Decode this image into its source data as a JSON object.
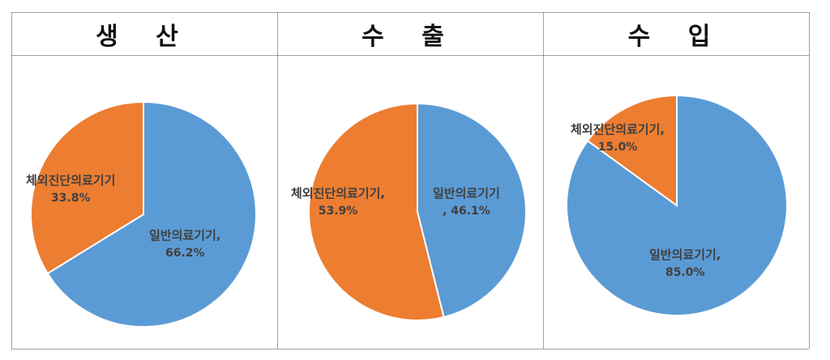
{
  "colors": {
    "blue": "#5b9bd5",
    "orange": "#ed7d31",
    "border": "#444444"
  },
  "panels": [
    {
      "title": "생 산"
    },
    {
      "title": "수 출"
    },
    {
      "title": "수 입"
    }
  ],
  "chart_data": [
    {
      "type": "pie",
      "title": "생 산",
      "slices": [
        {
          "label": "일반의료기기,",
          "value": 66.2,
          "value_label": "66.2%",
          "color": "#5b9bd5"
        },
        {
          "label": "체외진단의료기기",
          "value": 33.8,
          "value_label": "33.8%",
          "color": "#ed7d31"
        }
      ]
    },
    {
      "type": "pie",
      "title": "수 출",
      "slices": [
        {
          "label": "일반의료기기",
          "value": 46.1,
          "value_label": ", 46.1%",
          "color": "#5b9bd5"
        },
        {
          "label": "체외진단의료기기,",
          "value": 53.9,
          "value_label": "53.9%",
          "color": "#ed7d31"
        }
      ]
    },
    {
      "type": "pie",
      "title": "수 입",
      "slices": [
        {
          "label": "일반의료기기,",
          "value": 85.0,
          "value_label": "85.0%",
          "color": "#5b9bd5"
        },
        {
          "label": "체외진단의료기기,",
          "value": 15.0,
          "value_label": "15.0%",
          "color": "#ed7d31"
        }
      ]
    }
  ]
}
